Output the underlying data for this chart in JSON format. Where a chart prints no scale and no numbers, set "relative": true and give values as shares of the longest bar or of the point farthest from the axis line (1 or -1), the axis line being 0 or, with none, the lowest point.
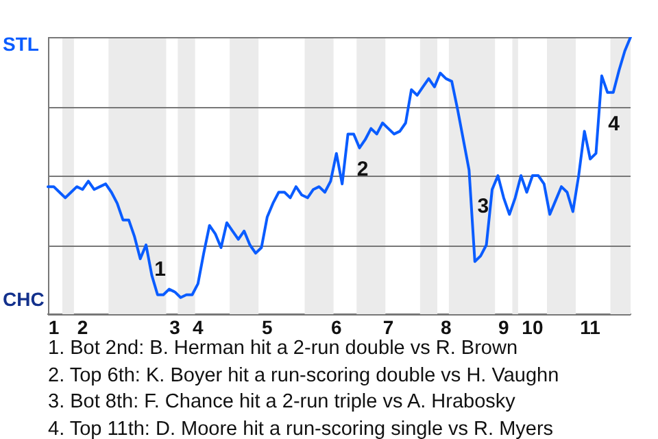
{
  "chart_data": {
    "type": "line",
    "relative": true,
    "categories": [
      null,
      "1",
      null,
      null,
      null,
      null,
      "2",
      null,
      null,
      null,
      null,
      null,
      null,
      null,
      null,
      null,
      null,
      null,
      null,
      null,
      null,
      null,
      "3",
      null,
      null,
      null,
      "4",
      null,
      null,
      null,
      null,
      null,
      null,
      null,
      null,
      null,
      null,
      null,
      "5",
      null,
      null,
      null,
      null,
      null,
      null,
      null,
      null,
      null,
      null,
      null,
      "6",
      null,
      null,
      null,
      null,
      null,
      null,
      null,
      null,
      "7",
      null,
      null,
      null,
      null,
      null,
      null,
      null,
      null,
      null,
      "8",
      null,
      null,
      null,
      null,
      null,
      null,
      null,
      null,
      null,
      "9",
      null,
      null,
      null,
      null,
      "10",
      null,
      null,
      null,
      null,
      null,
      null,
      null,
      null,
      null,
      "11",
      null,
      null,
      null,
      null,
      null,
      null,
      null
    ],
    "series": [
      {
        "color": "#0a5cff",
        "values": [
          0.46,
          0.46,
          0.44,
          0.42,
          0.44,
          0.46,
          0.45,
          0.48,
          0.45,
          0.46,
          0.47,
          0.44,
          0.4,
          0.34,
          0.34,
          0.28,
          0.2,
          0.25,
          0.14,
          0.07,
          0.07,
          0.09,
          0.08,
          0.06,
          0.07,
          0.07,
          0.11,
          0.22,
          0.32,
          0.29,
          0.24,
          0.33,
          0.3,
          0.27,
          0.3,
          0.25,
          0.22,
          0.24,
          0.35,
          0.4,
          0.44,
          0.44,
          0.42,
          0.46,
          0.43,
          0.42,
          0.45,
          0.46,
          0.44,
          0.48,
          0.58,
          0.47,
          0.65,
          0.65,
          0.6,
          0.63,
          0.67,
          0.65,
          0.69,
          0.67,
          0.65,
          0.66,
          0.69,
          0.81,
          0.79,
          0.82,
          0.85,
          0.82,
          0.87,
          0.85,
          0.84,
          0.74,
          0.63,
          0.52,
          0.19,
          0.21,
          0.25,
          0.45,
          0.5,
          0.42,
          0.36,
          0.42,
          0.5,
          0.44,
          0.5,
          0.5,
          0.47,
          0.36,
          0.41,
          0.46,
          0.44,
          0.37,
          0.5,
          0.66,
          0.56,
          0.58,
          0.86,
          0.8,
          0.8,
          0.88,
          0.95,
          1
        ],
        "line_style": "solid"
      }
    ],
    "grid": "y",
    "marker": "none",
    "legend": false,
    "annotations": [
      "STL",
      "CHC",
      "1",
      "2",
      "3",
      "4",
      "1. Bot 2nd: B. Herman hit a 2-run double vs R. Brown",
      "2. Top 6th: K. Boyer hit a run-scoring double vs H. Vaughn",
      "3. Bot 8th: F. Chance hit a 2-run triple vs A. Hrabosky",
      "4. Top 11th: D. Moore hit a run-scoring single vs R. Myers"
    ]
  }
}
